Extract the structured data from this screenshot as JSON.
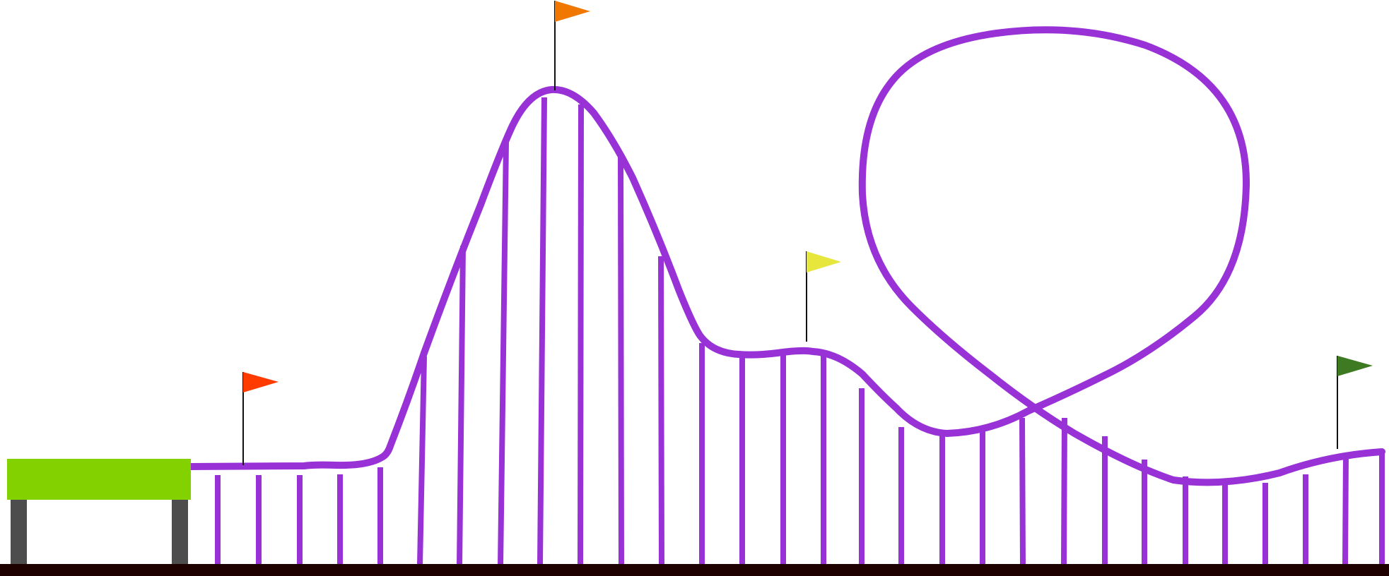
{
  "scene": {
    "colors": {
      "track": "#9932d6",
      "station_roof": "#84d100",
      "station_legs": "#4d4d4d",
      "ground": "#1f0000",
      "flag_pole": "#111111"
    },
    "flags": [
      {
        "name": "red-flag",
        "color": "#ff3b00"
      },
      {
        "name": "orange-flag",
        "color": "#f07800"
      },
      {
        "name": "yellow-flag",
        "color": "#e6e63c"
      },
      {
        "name": "green-flag",
        "color": "#3d7a22"
      }
    ],
    "icons": [
      "station-platform",
      "roller-coaster-track",
      "support-pillars",
      "loop-track",
      "flag-icon",
      "ground-line"
    ]
  }
}
